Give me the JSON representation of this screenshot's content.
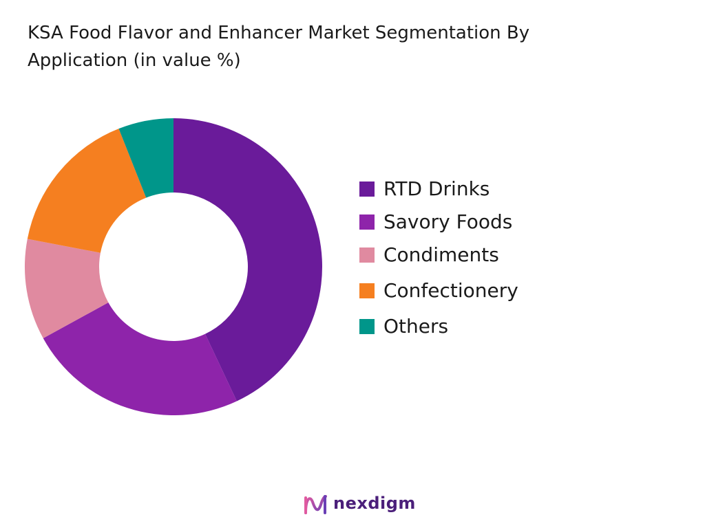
{
  "chart_data": {
    "type": "pie",
    "donut": true,
    "title_lines": [
      "KSA Food Flavor and Enhancer Market Segmentation By",
      "Application (in value %)"
    ],
    "categories": [
      "RTD Drinks",
      "Savory Foods",
      "Condiments",
      "Confectionery",
      "Others"
    ],
    "values": [
      43,
      24,
      11,
      16,
      6
    ],
    "colors": [
      "#6a1b9a",
      "#8e24aa",
      "#e08aa0",
      "#f57f20",
      "#00968a"
    ],
    "legend_position": "right"
  },
  "brand": {
    "name": "nexdigm",
    "logo_icon": "nexdigm-wave-logo"
  }
}
